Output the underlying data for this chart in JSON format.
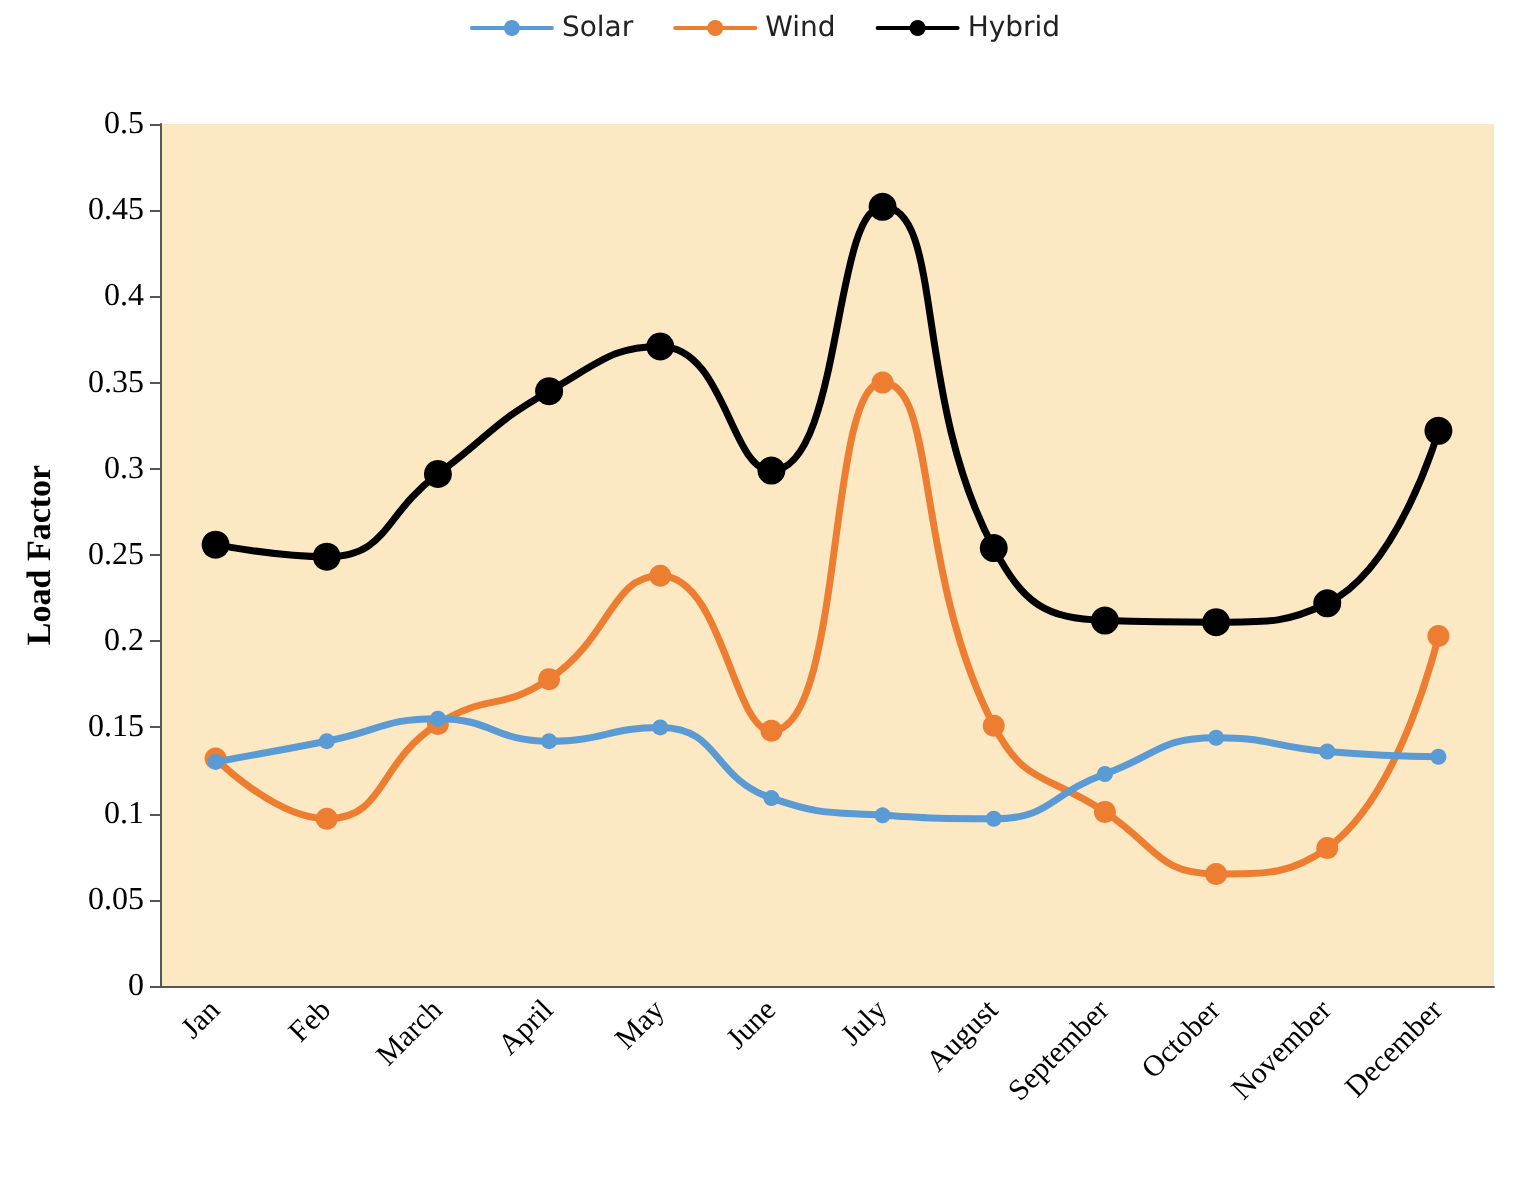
{
  "chart_data": {
    "type": "line",
    "ylabel": "Load Factor",
    "categories": [
      "Jan",
      "Feb",
      "March",
      "April",
      "May",
      "June",
      "July",
      "August",
      "September",
      "October",
      "November",
      "December"
    ],
    "series": [
      {
        "name": "Solar",
        "color": "#5b9bd5",
        "values": [
          0.13,
          0.142,
          0.155,
          0.142,
          0.15,
          0.109,
          0.099,
          0.097,
          0.123,
          0.144,
          0.136,
          0.133
        ]
      },
      {
        "name": "Wind",
        "color": "#ed7d31",
        "values": [
          0.132,
          0.097,
          0.152,
          0.178,
          0.238,
          0.148,
          0.35,
          0.151,
          0.101,
          0.065,
          0.08,
          0.203
        ]
      },
      {
        "name": "Hybrid",
        "color": "#000000",
        "values": [
          0.256,
          0.249,
          0.297,
          0.345,
          0.371,
          0.299,
          0.452,
          0.254,
          0.212,
          0.211,
          0.222,
          0.322
        ]
      }
    ],
    "ylim": [
      0,
      0.5
    ],
    "yticks": [
      0,
      0.05,
      0.1,
      0.15,
      0.2,
      0.25,
      0.3,
      0.35,
      0.4,
      0.45,
      0.5
    ],
    "grid": false,
    "legend": "top",
    "marker": "circle",
    "line_style": "solid"
  }
}
